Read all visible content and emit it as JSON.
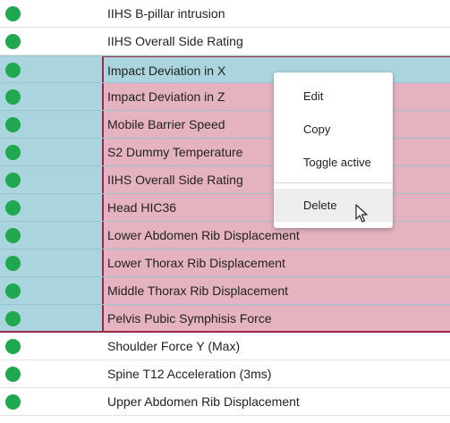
{
  "rows": [
    {
      "name": "IIHS B-pillar intrusion",
      "status": "active",
      "selected": false
    },
    {
      "name": "IIHS Overall Side Rating",
      "status": "active",
      "selected": false
    },
    {
      "name": "Impact Deviation in X",
      "status": "active",
      "selected": true
    },
    {
      "name": "Impact Deviation in Z",
      "status": "active",
      "selected": true
    },
    {
      "name": "Mobile Barrier Speed",
      "status": "active",
      "selected": true
    },
    {
      "name": "S2 Dummy Temperature",
      "status": "active",
      "selected": true
    },
    {
      "name": "IIHS Overall Side Rating",
      "status": "active",
      "selected": true
    },
    {
      "name": "Head HIC36",
      "status": "active",
      "selected": true
    },
    {
      "name": "Lower Abdomen Rib Displacement",
      "status": "active",
      "selected": true
    },
    {
      "name": "Lower Thorax Rib Displacement",
      "status": "active",
      "selected": true
    },
    {
      "name": "Middle Thorax Rib Displacement",
      "status": "active",
      "selected": true
    },
    {
      "name": "Pelvis Pubic Symphisis Force",
      "status": "active",
      "selected": true
    },
    {
      "name": "Shoulder Force Y (Max)",
      "status": "active",
      "selected": false
    },
    {
      "name": "Spine T12 Acceleration (3ms)",
      "status": "active",
      "selected": false
    },
    {
      "name": "Upper Abdomen Rib Displacement",
      "status": "active",
      "selected": false
    }
  ],
  "context_menu": {
    "edit_label": "Edit",
    "copy_label": "Copy",
    "toggle_active_label": "Toggle active",
    "delete_label": "Delete"
  },
  "colors": {
    "status_active": "#1fa84f",
    "selection_status_bg": "#aad4de",
    "selection_name_bg": "#e4b3bf",
    "selection_border": "#9a2a4a"
  },
  "icons": {
    "status": "green-dot-icon",
    "cursor": "mouse-pointer-icon"
  }
}
